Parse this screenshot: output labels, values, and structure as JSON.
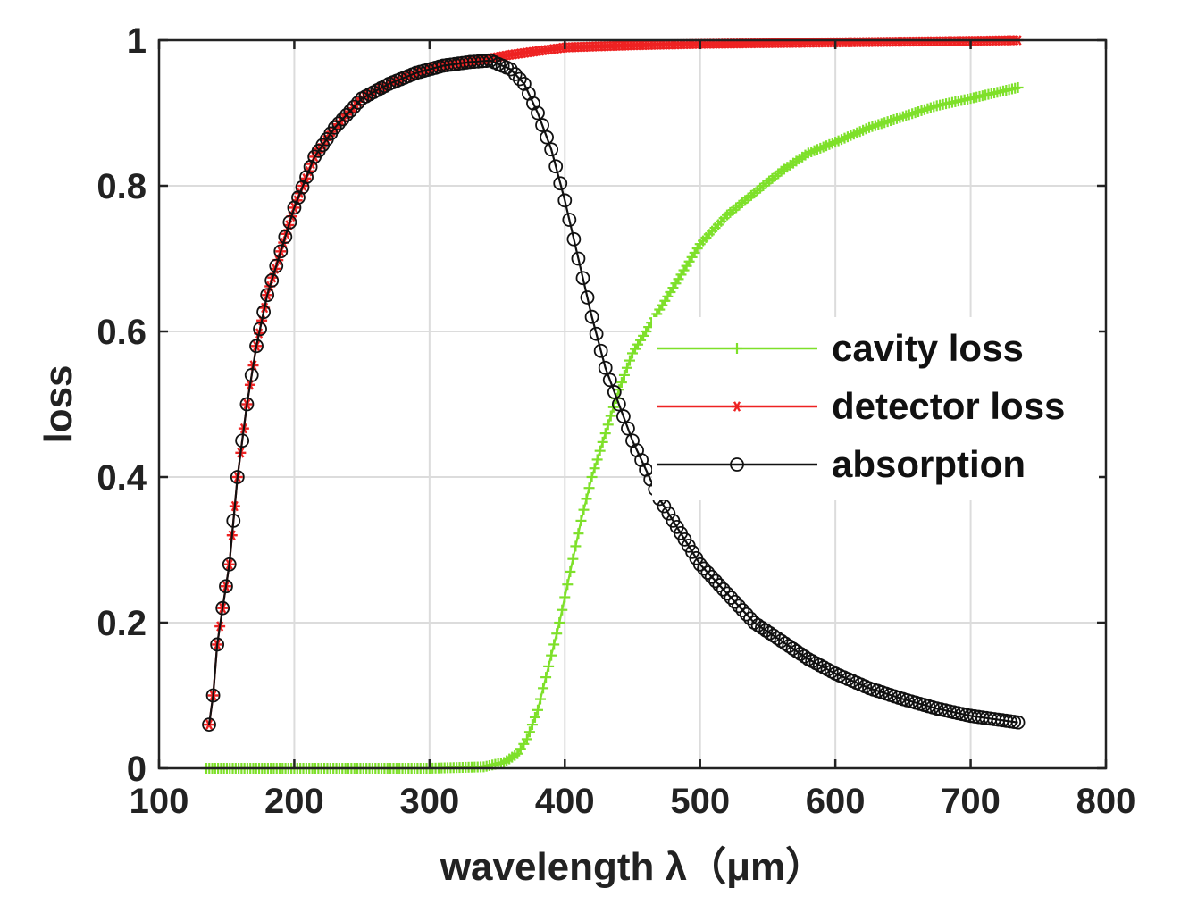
{
  "chart_data": {
    "type": "line",
    "title": "",
    "xlabel": "wavelength λ（μm）",
    "ylabel": "loss",
    "xlim": [
      100,
      800
    ],
    "ylim": [
      0,
      1
    ],
    "xticks": [
      100,
      200,
      300,
      400,
      500,
      600,
      700,
      800
    ],
    "yticks": [
      0,
      0.2,
      0.4,
      0.6,
      0.8,
      1
    ],
    "xtick_labels": [
      "100",
      "200",
      "300",
      "400",
      "500",
      "600",
      "700",
      "800"
    ],
    "ytick_labels": [
      "0",
      "0.2",
      "0.4",
      "0.6",
      "0.8",
      "1"
    ],
    "grid": true,
    "legend_position": "center-right",
    "series": [
      {
        "name": "cavity loss",
        "color": "#7ee02a",
        "marker": "plus",
        "x": [
          135,
          200,
          300,
          340,
          355,
          365,
          372,
          380,
          388,
          396,
          404,
          412,
          420,
          430,
          440,
          450,
          460,
          470,
          480,
          490,
          500,
          520,
          540,
          560,
          580,
          600,
          625,
          650,
          675,
          700,
          735
        ],
        "y": [
          0,
          0,
          0,
          0.002,
          0.008,
          0.02,
          0.04,
          0.08,
          0.14,
          0.2,
          0.27,
          0.34,
          0.4,
          0.46,
          0.52,
          0.57,
          0.6,
          0.63,
          0.66,
          0.69,
          0.72,
          0.76,
          0.79,
          0.82,
          0.845,
          0.86,
          0.88,
          0.895,
          0.91,
          0.92,
          0.935
        ]
      },
      {
        "name": "detector loss",
        "color": "#ee2222",
        "marker": "star",
        "x": [
          137,
          140,
          143,
          147,
          152,
          158,
          165,
          172,
          180,
          190,
          200,
          215,
          230,
          250,
          270,
          290,
          310,
          330,
          345,
          360,
          380,
          400,
          450,
          500,
          550,
          600,
          650,
          700,
          735
        ],
        "y": [
          0.06,
          0.1,
          0.17,
          0.22,
          0.28,
          0.4,
          0.5,
          0.58,
          0.65,
          0.71,
          0.77,
          0.84,
          0.88,
          0.92,
          0.94,
          0.955,
          0.965,
          0.97,
          0.975,
          0.98,
          0.985,
          0.99,
          0.993,
          0.995,
          0.996,
          0.997,
          0.998,
          0.999,
          1.0
        ]
      },
      {
        "name": "absorption",
        "color": "#111111",
        "marker": "circle",
        "x": [
          137,
          140,
          143,
          147,
          152,
          158,
          165,
          172,
          180,
          190,
          200,
          215,
          230,
          250,
          270,
          290,
          310,
          330,
          345,
          360,
          370,
          380,
          390,
          400,
          410,
          420,
          430,
          440,
          450,
          460,
          470,
          480,
          500,
          520,
          540,
          560,
          580,
          600,
          625,
          650,
          675,
          700,
          735
        ],
        "y": [
          0.06,
          0.1,
          0.17,
          0.22,
          0.28,
          0.4,
          0.5,
          0.58,
          0.65,
          0.71,
          0.77,
          0.84,
          0.88,
          0.92,
          0.94,
          0.955,
          0.965,
          0.97,
          0.972,
          0.96,
          0.94,
          0.9,
          0.85,
          0.78,
          0.7,
          0.62,
          0.55,
          0.5,
          0.45,
          0.41,
          0.37,
          0.34,
          0.28,
          0.24,
          0.2,
          0.175,
          0.15,
          0.13,
          0.11,
          0.095,
          0.082,
          0.072,
          0.063
        ]
      }
    ]
  }
}
